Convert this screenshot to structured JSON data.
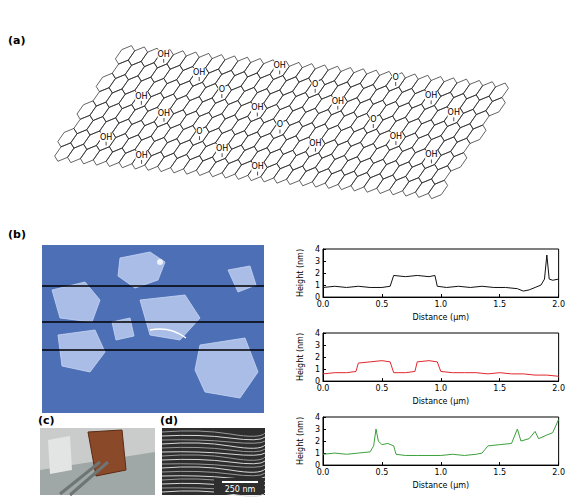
{
  "figure": {
    "panels": {
      "a": {
        "label": "(a)",
        "groups": [
          "OH",
          "OH",
          "O",
          "OH",
          "OH",
          "O",
          "OH",
          "OH",
          "OH",
          "O",
          "OH",
          "OH",
          "O",
          "OH",
          "OH",
          "OH",
          "O",
          "OH",
          "OH",
          "O",
          "OH",
          "OH"
        ]
      },
      "b": {
        "label": "(b)"
      },
      "c": {
        "label": "(c)"
      },
      "d": {
        "label": "(d)",
        "scale_bar": "250 nm"
      }
    }
  },
  "chart_data": [
    {
      "type": "line",
      "color": "#111111",
      "xlabel": "Distance (μm)",
      "ylabel": "Height (nm)",
      "x": [
        0.0,
        0.1,
        0.2,
        0.3,
        0.4,
        0.5,
        0.57,
        0.6,
        0.7,
        0.8,
        0.9,
        0.95,
        0.97,
        1.05,
        1.15,
        1.25,
        1.35,
        1.45,
        1.55,
        1.65,
        1.7,
        1.75,
        1.8,
        1.85,
        1.88,
        1.9,
        1.92,
        1.95,
        2.0
      ],
      "values": [
        0.8,
        0.9,
        0.8,
        0.9,
        0.8,
        0.8,
        0.9,
        1.8,
        1.7,
        1.8,
        1.7,
        1.8,
        0.9,
        0.8,
        0.9,
        0.8,
        0.9,
        0.8,
        0.8,
        0.7,
        0.5,
        0.6,
        0.8,
        1.0,
        1.5,
        3.5,
        1.5,
        1.4,
        1.5
      ],
      "xlim": [
        0,
        2
      ],
      "xticks": [
        {
          "value": 0,
          "label": "0.0"
        },
        0.5,
        {
          "value": 1,
          "label": "1.0"
        },
        1.5,
        {
          "value": 2,
          "label": "2.0"
        }
      ],
      "ylim": [
        0,
        4
      ],
      "yticks": [
        0,
        1,
        2,
        3,
        4
      ],
      "grid": false
    },
    {
      "type": "line",
      "color": "#e0262c",
      "xlabel": "Distance (μm)",
      "ylabel": "Height (nm)",
      "x": [
        0.0,
        0.1,
        0.2,
        0.28,
        0.3,
        0.4,
        0.5,
        0.57,
        0.6,
        0.7,
        0.78,
        0.8,
        0.9,
        0.97,
        1.0,
        1.1,
        1.2,
        1.3,
        1.4,
        1.5,
        1.6,
        1.7,
        1.8,
        1.9,
        2.0
      ],
      "values": [
        0.6,
        0.7,
        0.7,
        0.8,
        1.5,
        1.6,
        1.7,
        1.6,
        0.7,
        0.7,
        0.8,
        1.6,
        1.7,
        1.6,
        0.8,
        0.7,
        0.7,
        0.7,
        0.6,
        0.7,
        0.6,
        0.6,
        0.5,
        0.5,
        0.4
      ],
      "xlim": [
        0,
        2
      ],
      "xticks": [
        {
          "value": 0,
          "label": "0.0"
        },
        0.5,
        {
          "value": 1,
          "label": "1.0"
        },
        1.5,
        {
          "value": 2,
          "label": "2.0"
        }
      ],
      "ylim": [
        0,
        4
      ],
      "yticks": [
        0,
        1,
        2,
        3,
        4
      ],
      "grid": false
    },
    {
      "type": "line",
      "color": "#3aa03a",
      "xlabel": "Distance (μm)",
      "ylabel": "Height (nm)",
      "x": [
        0.0,
        0.1,
        0.2,
        0.3,
        0.4,
        0.43,
        0.45,
        0.47,
        0.5,
        0.55,
        0.6,
        0.62,
        0.7,
        0.8,
        0.9,
        1.0,
        1.1,
        1.2,
        1.3,
        1.35,
        1.4,
        1.5,
        1.6,
        1.65,
        1.68,
        1.75,
        1.8,
        1.83,
        1.9,
        1.95,
        2.0
      ],
      "values": [
        0.9,
        1.0,
        0.9,
        1.0,
        1.1,
        1.6,
        3.0,
        2.0,
        1.7,
        1.8,
        1.6,
        0.9,
        0.8,
        0.8,
        0.8,
        0.8,
        0.9,
        0.8,
        0.9,
        1.0,
        1.6,
        1.7,
        1.8,
        3.0,
        2.0,
        2.2,
        2.8,
        2.2,
        2.5,
        2.7,
        3.8
      ],
      "xlim": [
        0,
        2
      ],
      "xticks": [
        {
          "value": 0,
          "label": "0.0"
        },
        0.5,
        {
          "value": 1,
          "label": "1.0"
        },
        1.5,
        {
          "value": 2,
          "label": "2.0"
        }
      ],
      "ylim": [
        0,
        4
      ],
      "yticks": [
        0,
        1,
        2,
        3,
        4
      ],
      "grid": false
    }
  ]
}
